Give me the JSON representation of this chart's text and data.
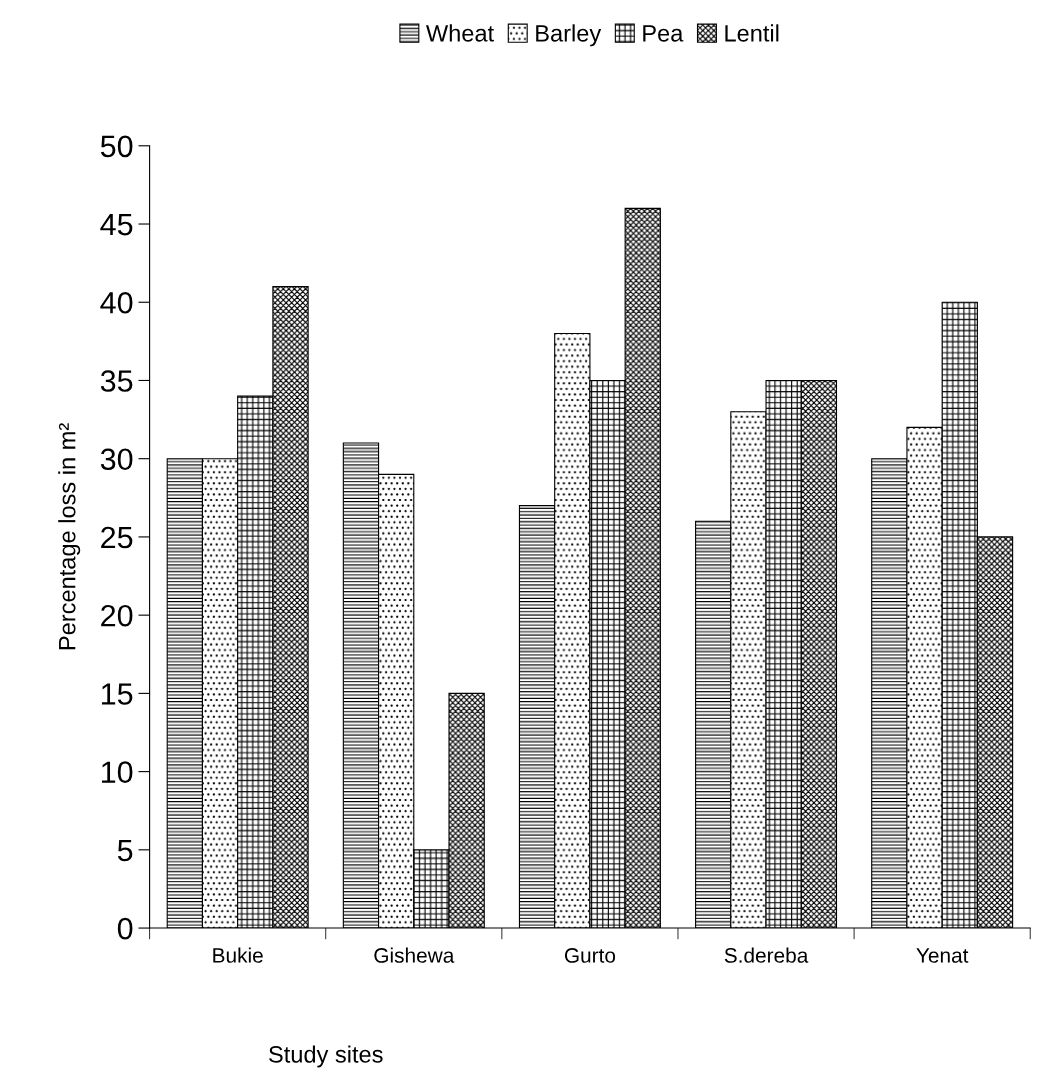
{
  "chart_data": {
    "type": "bar",
    "xlabel": "Study sites",
    "ylabel": "Percentage loss in m²",
    "categories": [
      "Bukie",
      "Gishewa",
      "Gurto",
      "S.dereba",
      "Yenat"
    ],
    "series": [
      {
        "name": "Wheat",
        "color": "#000000",
        "values": [
          30,
          31,
          27,
          26,
          30
        ]
      },
      {
        "name": "Barley",
        "color": "#000000",
        "values": [
          30,
          29,
          38,
          33,
          32
        ]
      },
      {
        "name": "Pea",
        "color": "#000000",
        "values": [
          34,
          5,
          35,
          35,
          40
        ]
      },
      {
        "name": "Lentil",
        "color": "#000000",
        "values": [
          41,
          15,
          46,
          35,
          25
        ]
      }
    ],
    "ylim": [
      0,
      50
    ],
    "yticks": [
      0,
      5,
      10,
      15,
      20,
      25,
      30,
      35,
      40,
      45,
      50
    ],
    "grid": false,
    "legend": "top"
  }
}
